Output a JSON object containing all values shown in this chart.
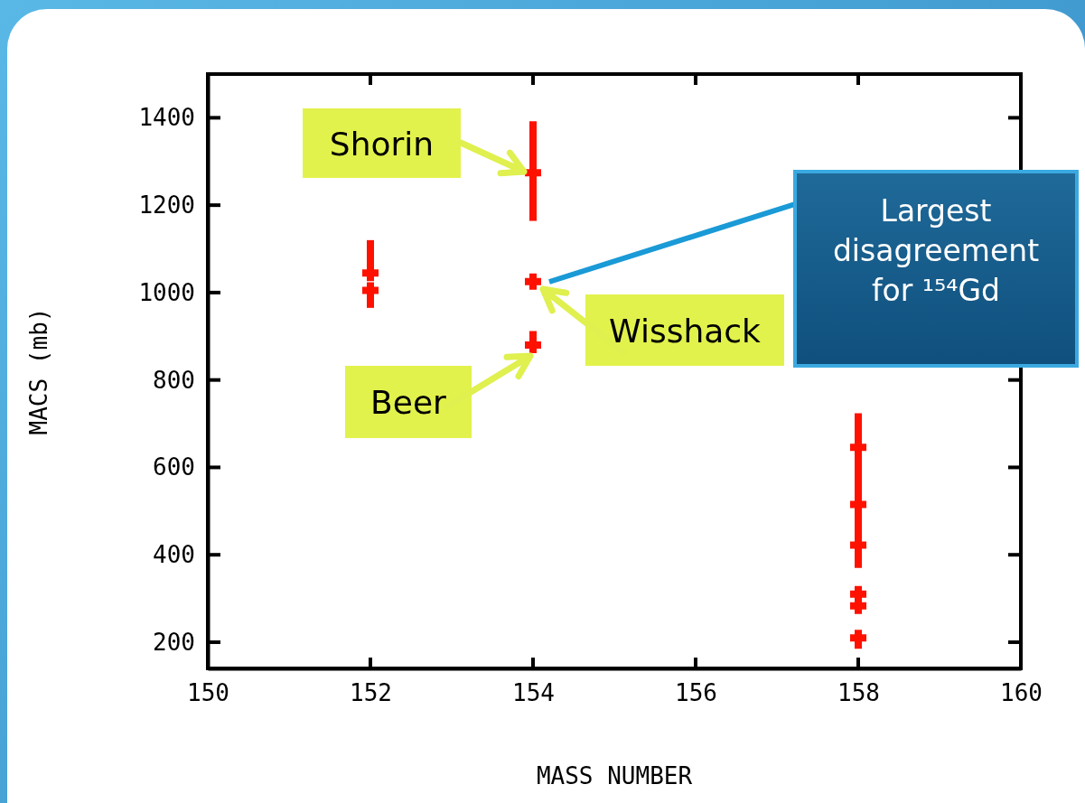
{
  "chart_data": {
    "type": "scatter",
    "xlabel": "MASS NUMBER",
    "ylabel": "MACS (mb)",
    "xlim": [
      150,
      160
    ],
    "xticks": [
      150,
      152,
      154,
      156,
      158,
      160
    ],
    "ylim": [
      140,
      1500
    ],
    "yticks": [
      200,
      400,
      600,
      800,
      1000,
      1200,
      1400
    ],
    "marker": "cross",
    "grid": false,
    "series": [
      {
        "color": "#ff1100",
        "x": [
          152,
          152,
          154,
          154,
          154,
          158,
          158,
          158,
          158,
          158,
          158
        ],
        "values": [
          1045,
          1005,
          1274,
          1025,
          880,
          646,
          515,
          422,
          310,
          283,
          210
        ],
        "errors": [
          [
            1045,
            1120
          ],
          [
            965,
            1005
          ],
          [
            1164,
            1392
          ],
          null,
          [
            880,
            912
          ],
          [
            370,
            724
          ],
          null,
          null,
          null,
          null,
          [
            185,
            210
          ]
        ]
      }
    ],
    "annotations": [
      "Shorin",
      "Wisshack",
      "Beer",
      "Largest disagreement for ¹⁵⁴Gd"
    ]
  }
}
